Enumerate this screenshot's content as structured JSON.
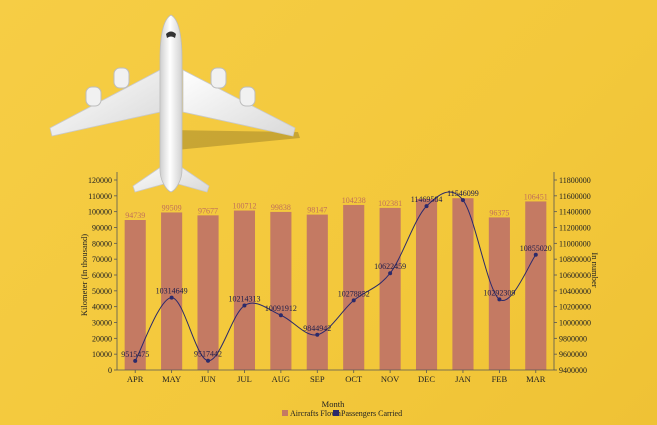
{
  "chart_data": {
    "type": "bar",
    "categories": [
      "APR",
      "MAY",
      "JUN",
      "JUL",
      "AUG",
      "SEP",
      "OCT",
      "NOV",
      "DEC",
      "JAN",
      "FEB",
      "MAR"
    ],
    "series": [
      {
        "name": "Aircrafts Flown",
        "type": "bar",
        "axis": "left",
        "color": "#C47A63",
        "values": [
          94739,
          99509,
          97677,
          100712,
          99838,
          98147,
          104238,
          102381,
          108000,
          108500,
          96375,
          106451
        ],
        "labels": [
          "94739",
          "99509",
          "97677",
          "100712",
          "99838",
          "98147",
          "104238",
          "102381",
          "",
          "",
          "96375",
          "106451"
        ]
      },
      {
        "name": "Passengers Carried",
        "type": "line",
        "axis": "right",
        "color": "#2B2A6B",
        "values": [
          9515475,
          10314649,
          9517442,
          10214313,
          10091912,
          9844942,
          10278852,
          10622459,
          11469584,
          11546099,
          10292309,
          10855020
        ],
        "labels": [
          "9515475",
          "10314649",
          "9517442",
          "10214313",
          "10091912",
          "9844942",
          "10278852",
          "10622459",
          "11469584",
          "11546099",
          "10292309",
          "10855020"
        ]
      }
    ],
    "xlabel": "Month",
    "ylabel": "Kilometer (In thousand)",
    "y2label": "In number",
    "ylim": [
      0,
      120000
    ],
    "y2lim": [
      9400000,
      11800000
    ],
    "yticks": [
      "0",
      "10000",
      "20000",
      "30000",
      "40000",
      "50000",
      "60000",
      "70000",
      "80000",
      "90000",
      "100000",
      "110000",
      "120000"
    ],
    "y2ticks": [
      "9400000",
      "9600000",
      "9800000",
      "10000000",
      "10200000",
      "10400000",
      "10600000",
      "10800000",
      "11000000",
      "11200000",
      "11400000",
      "11600000",
      "11800000"
    ],
    "legend": [
      "Aircrafts Flown",
      "Passengers Carried"
    ],
    "legend_position": "bottom"
  },
  "legend_text": {
    "bar": "Aircrafts Flown",
    "line": "Passengers Carried"
  }
}
